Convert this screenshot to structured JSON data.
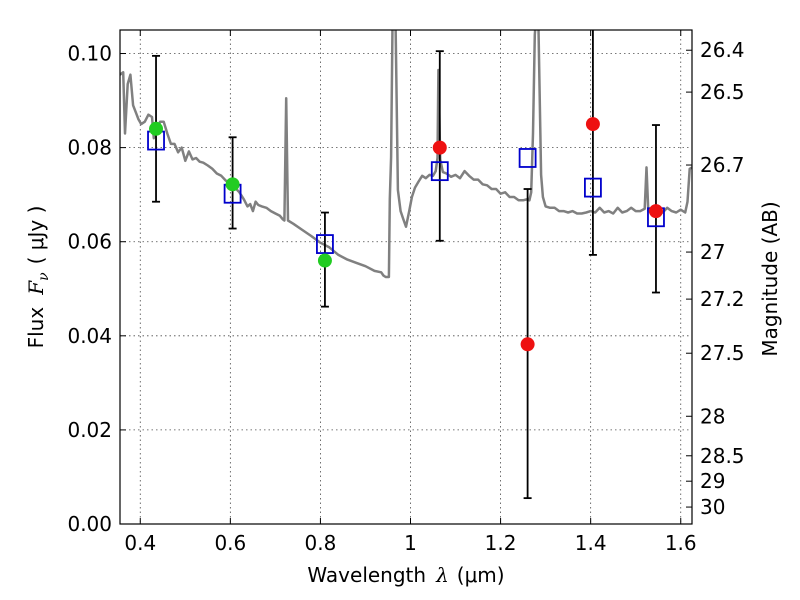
{
  "chart_data": {
    "type": "scatter",
    "title": "",
    "xlabel_prefix": "Wavelength",
    "xlabel_symbol": "λ",
    "xlabel_unit": "(μm)",
    "ylabel_prefix": "Flux",
    "ylabel_symbol": "F",
    "ylabel_subscript": "ν",
    "ylabel_unit": "( μJy )",
    "y2label": "Magnitude (AB)",
    "xlim": [
      0.355,
      1.625
    ],
    "ylim": [
      0.0,
      0.105
    ],
    "grid": true,
    "xticks": [
      0.4,
      0.6,
      0.8,
      1.0,
      1.2,
      1.4,
      1.6
    ],
    "xtick_labels": [
      "0.4",
      "0.6",
      "0.8",
      "1",
      "1.2",
      "1.4",
      "1.6"
    ],
    "yticks": [
      0.0,
      0.02,
      0.04,
      0.06,
      0.08,
      0.1
    ],
    "ytick_labels": [
      "0.00",
      "0.02",
      "0.04",
      "0.06",
      "0.08",
      "0.10"
    ],
    "y2ticks": [
      {
        "flux": 0.1007,
        "label": "26.4"
      },
      {
        "flux": 0.0918,
        "label": "26.5"
      },
      {
        "flux": 0.0763,
        "label": "26.7"
      },
      {
        "flux": 0.0578,
        "label": "27"
      },
      {
        "flux": 0.0478,
        "label": "27.2"
      },
      {
        "flux": 0.0363,
        "label": "27.5"
      },
      {
        "flux": 0.0229,
        "label": "28"
      },
      {
        "flux": 0.0145,
        "label": "28.5"
      },
      {
        "flux": 0.0091,
        "label": "29"
      },
      {
        "flux": 0.0036,
        "label": "30"
      }
    ],
    "series": [
      {
        "type": "line",
        "color": "#808080",
        "points": [
          [
            0.355,
            0.0955
          ],
          [
            0.362,
            0.096
          ],
          [
            0.366,
            0.083
          ],
          [
            0.372,
            0.0935
          ],
          [
            0.378,
            0.0955
          ],
          [
            0.384,
            0.089
          ],
          [
            0.39,
            0.0875
          ],
          [
            0.396,
            0.086
          ],
          [
            0.402,
            0.085
          ],
          [
            0.41,
            0.0855
          ],
          [
            0.418,
            0.087
          ],
          [
            0.426,
            0.0865
          ],
          [
            0.43,
            0.082
          ],
          [
            0.436,
            0.0835
          ],
          [
            0.444,
            0.0855
          ],
          [
            0.452,
            0.0855
          ],
          [
            0.46,
            0.083
          ],
          [
            0.468,
            0.0808
          ],
          [
            0.476,
            0.0808
          ],
          [
            0.484,
            0.079
          ],
          [
            0.492,
            0.08
          ],
          [
            0.5,
            0.0772
          ],
          [
            0.508,
            0.0792
          ],
          [
            0.516,
            0.0775
          ],
          [
            0.524,
            0.0778
          ],
          [
            0.532,
            0.077
          ],
          [
            0.54,
            0.0768
          ],
          [
            0.55,
            0.0762
          ],
          [
            0.56,
            0.0755
          ],
          [
            0.57,
            0.0745
          ],
          [
            0.58,
            0.074
          ],
          [
            0.59,
            0.073
          ],
          [
            0.6,
            0.0725
          ],
          [
            0.61,
            0.0715
          ],
          [
            0.62,
            0.0705
          ],
          [
            0.63,
            0.069
          ],
          [
            0.638,
            0.0675
          ],
          [
            0.644,
            0.068
          ],
          [
            0.65,
            0.0665
          ],
          [
            0.656,
            0.0685
          ],
          [
            0.662,
            0.0678
          ],
          [
            0.67,
            0.0675
          ],
          [
            0.68,
            0.0672
          ],
          [
            0.69,
            0.0665
          ],
          [
            0.7,
            0.066
          ],
          [
            0.71,
            0.0655
          ],
          [
            0.716,
            0.0648
          ],
          [
            0.72,
            0.0645
          ],
          [
            0.724,
            0.0905
          ],
          [
            0.728,
            0.0645
          ],
          [
            0.74,
            0.0638
          ],
          [
            0.76,
            0.0625
          ],
          [
            0.78,
            0.0612
          ],
          [
            0.8,
            0.0598
          ],
          [
            0.82,
            0.0588
          ],
          [
            0.84,
            0.0572
          ],
          [
            0.86,
            0.0562
          ],
          [
            0.88,
            0.0555
          ],
          [
            0.9,
            0.0548
          ],
          [
            0.92,
            0.0538
          ],
          [
            0.935,
            0.0535
          ],
          [
            0.94,
            0.0528
          ],
          [
            0.945,
            0.0525
          ],
          [
            0.952,
            0.0525
          ],
          [
            0.954,
            0.069
          ],
          [
            0.957,
            0.078
          ],
          [
            0.96,
            0.106
          ],
          [
            0.967,
            0.106
          ],
          [
            0.972,
            0.071
          ],
          [
            0.978,
            0.0665
          ],
          [
            0.984,
            0.0648
          ],
          [
            0.99,
            0.0632
          ],
          [
            0.997,
            0.0665
          ],
          [
            1.003,
            0.0695
          ],
          [
            1.01,
            0.0715
          ],
          [
            1.018,
            0.0728
          ],
          [
            1.026,
            0.074
          ],
          [
            1.034,
            0.0735
          ],
          [
            1.042,
            0.0742
          ],
          [
            1.05,
            0.074
          ],
          [
            1.056,
            0.075
          ],
          [
            1.06,
            0.0778
          ],
          [
            1.062,
            0.0965
          ],
          [
            1.066,
            0.0775
          ],
          [
            1.072,
            0.0748
          ],
          [
            1.08,
            0.0745
          ],
          [
            1.09,
            0.0738
          ],
          [
            1.1,
            0.0742
          ],
          [
            1.11,
            0.0735
          ],
          [
            1.12,
            0.075
          ],
          [
            1.13,
            0.074
          ],
          [
            1.14,
            0.0732
          ],
          [
            1.15,
            0.0732
          ],
          [
            1.16,
            0.0722
          ],
          [
            1.17,
            0.072
          ],
          [
            1.18,
            0.0712
          ],
          [
            1.19,
            0.0712
          ],
          [
            1.2,
            0.0702
          ],
          [
            1.21,
            0.0705
          ],
          [
            1.22,
            0.0695
          ],
          [
            1.23,
            0.0695
          ],
          [
            1.24,
            0.0688
          ],
          [
            1.25,
            0.0688
          ],
          [
            1.258,
            0.069
          ],
          [
            1.264,
            0.0688
          ],
          [
            1.268,
            0.0705
          ],
          [
            1.272,
            0.083
          ],
          [
            1.276,
            0.104
          ],
          [
            1.278,
            0.1065
          ],
          [
            1.284,
            0.1065
          ],
          [
            1.29,
            0.0742
          ],
          [
            1.294,
            0.0695
          ],
          [
            1.3,
            0.0675
          ],
          [
            1.31,
            0.0672
          ],
          [
            1.32,
            0.0672
          ],
          [
            1.33,
            0.0665
          ],
          [
            1.34,
            0.0665
          ],
          [
            1.35,
            0.0662
          ],
          [
            1.36,
            0.0665
          ],
          [
            1.37,
            0.066
          ],
          [
            1.38,
            0.066
          ],
          [
            1.39,
            0.0662
          ],
          [
            1.4,
            0.0665
          ],
          [
            1.41,
            0.0662
          ],
          [
            1.42,
            0.0672
          ],
          [
            1.43,
            0.0662
          ],
          [
            1.44,
            0.0665
          ],
          [
            1.45,
            0.066
          ],
          [
            1.46,
            0.0672
          ],
          [
            1.47,
            0.0662
          ],
          [
            1.48,
            0.0665
          ],
          [
            1.49,
            0.0672
          ],
          [
            1.5,
            0.0665
          ],
          [
            1.51,
            0.0665
          ],
          [
            1.52,
            0.067
          ],
          [
            1.524,
            0.0758
          ],
          [
            1.528,
            0.0665
          ],
          [
            1.54,
            0.066
          ],
          [
            1.55,
            0.0665
          ],
          [
            1.56,
            0.0662
          ],
          [
            1.57,
            0.0672
          ],
          [
            1.58,
            0.0665
          ],
          [
            1.59,
            0.0662
          ],
          [
            1.6,
            0.0668
          ],
          [
            1.61,
            0.0662
          ],
          [
            1.615,
            0.0685
          ],
          [
            1.62,
            0.0755
          ],
          [
            1.625,
            0.0758
          ]
        ]
      },
      {
        "type": "errorbar",
        "color": "#000000",
        "points": [
          {
            "x": 0.435,
            "low": 0.0685,
            "high": 0.0995
          },
          {
            "x": 0.605,
            "low": 0.0628,
            "high": 0.0822
          },
          {
            "x": 0.81,
            "low": 0.0462,
            "high": 0.0662
          },
          {
            "x": 1.065,
            "low": 0.0602,
            "high": 0.1005
          },
          {
            "x": 1.26,
            "low": 0.0055,
            "high": 0.0712
          },
          {
            "x": 1.405,
            "low": 0.0572,
            "high": 0.1065
          },
          {
            "x": 1.545,
            "low": 0.0492,
            "high": 0.0848
          }
        ]
      },
      {
        "type": "square",
        "color": "#0000cc",
        "points": [
          [
            0.435,
            0.0815
          ],
          [
            0.605,
            0.0702
          ],
          [
            0.81,
            0.0595
          ],
          [
            1.065,
            0.075
          ],
          [
            1.26,
            0.0778
          ],
          [
            1.405,
            0.0715
          ],
          [
            1.545,
            0.0652
          ]
        ]
      },
      {
        "type": "circle",
        "color": "#22cc22",
        "points": [
          [
            0.435,
            0.084
          ],
          [
            0.605,
            0.0722
          ],
          [
            0.81,
            0.056
          ]
        ]
      },
      {
        "type": "circle",
        "color": "#ee1111",
        "points": [
          [
            1.065,
            0.08
          ],
          [
            1.26,
            0.0382
          ],
          [
            1.405,
            0.085
          ],
          [
            1.545,
            0.0665
          ]
        ]
      }
    ]
  }
}
